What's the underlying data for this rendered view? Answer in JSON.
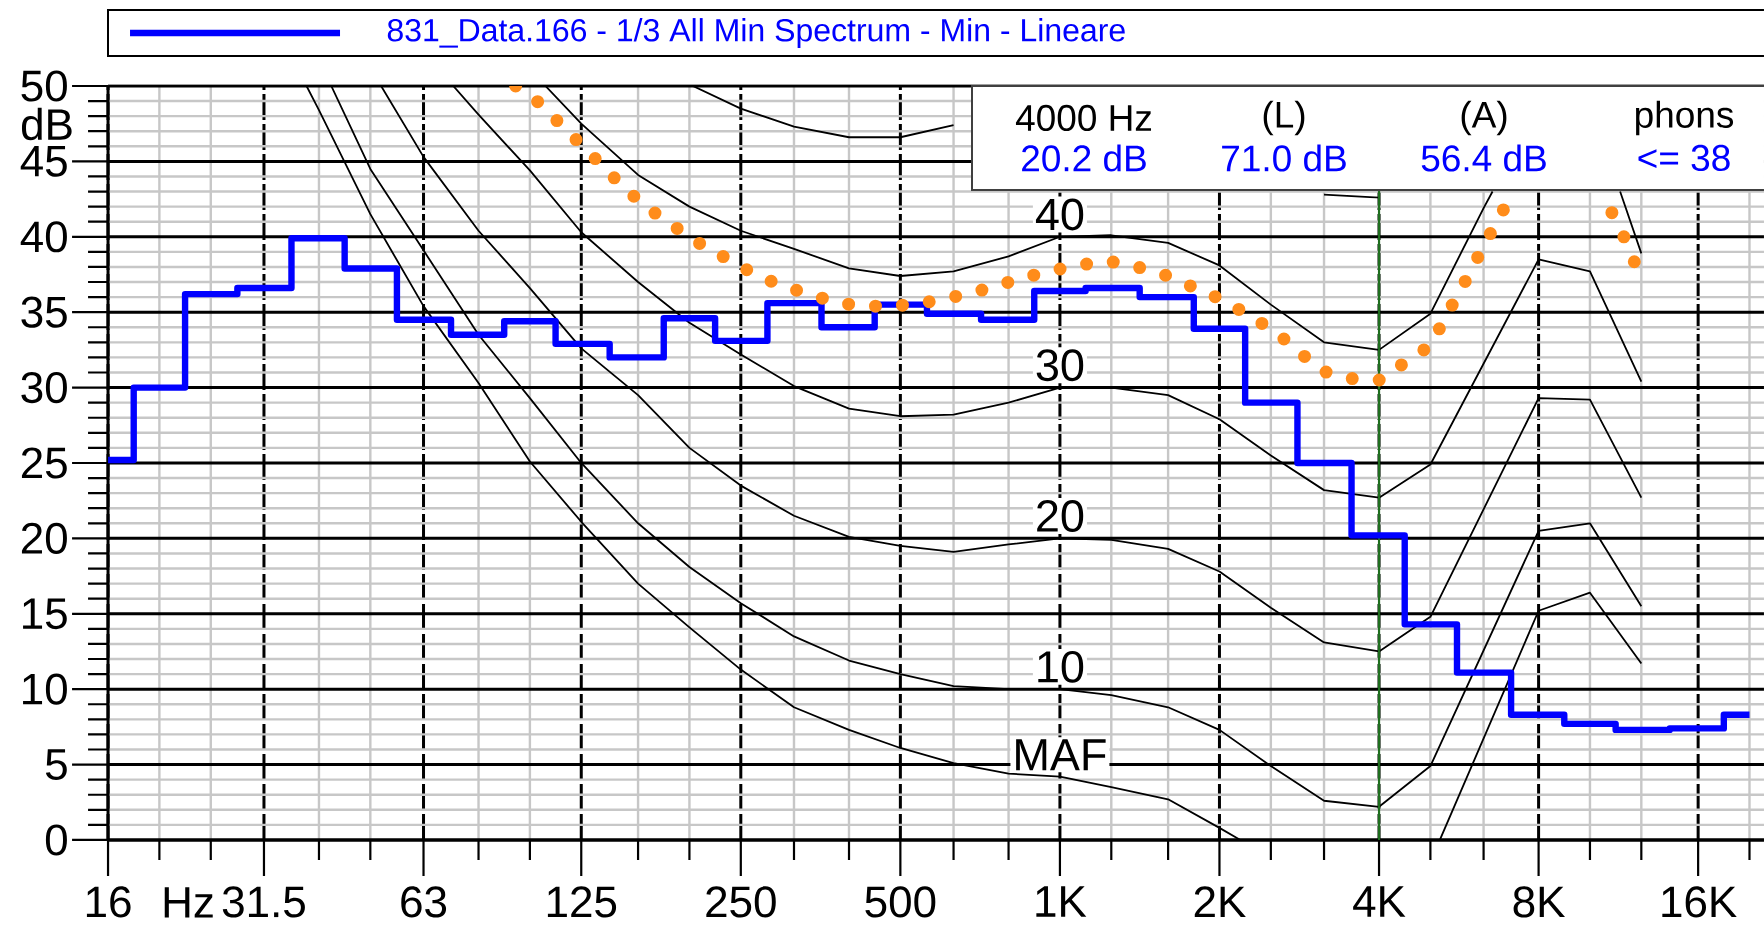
{
  "chart_data": {
    "type": "step",
    "xlabel": "Hz",
    "ylabel": "dB",
    "annotations": [
      "4000 Hz",
      "20.2 dB",
      "(L)",
      "71.0 dB",
      "(A)",
      "56.4 dB",
      "phons",
      "<= 38"
    ],
    "log": "x",
    "xlim": [
      16,
      21300
    ],
    "ylim": [
      0,
      50
    ],
    "xticks": [
      16,
      {
        "value": 20,
        "label": null
      },
      {
        "value": 25,
        "label": null
      },
      31.5,
      {
        "value": 40,
        "label": null
      },
      {
        "value": 50,
        "label": null
      },
      63,
      {
        "value": 80,
        "label": null
      },
      {
        "value": 100,
        "label": null
      },
      125,
      {
        "value": 160,
        "label": null
      },
      {
        "value": 200,
        "label": null
      },
      250,
      {
        "value": 315,
        "label": null
      },
      {
        "value": 400,
        "label": null
      },
      500,
      {
        "value": 630,
        "label": null
      },
      {
        "value": 800,
        "label": null
      },
      {
        "value": 1000,
        "label": "1K"
      },
      {
        "value": 1250,
        "label": null
      },
      {
        "value": 1600,
        "label": null
      },
      {
        "value": 2000,
        "label": "2K"
      },
      {
        "value": 2500,
        "label": null
      },
      {
        "value": 3150,
        "label": null
      },
      {
        "value": 4000,
        "label": "4K"
      },
      {
        "value": 5000,
        "label": null
      },
      {
        "value": 6300,
        "label": null
      },
      {
        "value": 8000,
        "label": "8K"
      },
      {
        "value": 10000,
        "label": null
      },
      {
        "value": 12500,
        "label": null
      },
      {
        "value": 16000,
        "label": "16K"
      },
      {
        "value": 20000,
        "label": null
      }
    ],
    "yticks": [
      0,
      {
        "value": 1,
        "label": null
      },
      {
        "value": 2,
        "label": null
      },
      {
        "value": 3,
        "label": null
      },
      {
        "value": 4,
        "label": null
      },
      5,
      {
        "value": 6,
        "label": null
      },
      {
        "value": 7,
        "label": null
      },
      {
        "value": 8,
        "label": null
      },
      {
        "value": 9,
        "label": null
      },
      10,
      {
        "value": 11,
        "label": null
      },
      {
        "value": 12,
        "label": null
      },
      {
        "value": 13,
        "label": null
      },
      {
        "value": 14,
        "label": null
      },
      15,
      {
        "value": 16,
        "label": null
      },
      {
        "value": 17,
        "label": null
      },
      {
        "value": 18,
        "label": null
      },
      {
        "value": 19,
        "label": null
      },
      20,
      {
        "value": 21,
        "label": null
      },
      {
        "value": 22,
        "label": null
      },
      {
        "value": 23,
        "label": null
      },
      {
        "value": 24,
        "label": null
      },
      25,
      {
        "value": 26,
        "label": null
      },
      {
        "value": 27,
        "label": null
      },
      {
        "value": 28,
        "label": null
      },
      {
        "value": 29,
        "label": null
      },
      30,
      {
        "value": 31,
        "label": null
      },
      {
        "value": 32,
        "label": null
      },
      {
        "value": 33,
        "label": null
      },
      {
        "value": 34,
        "label": null
      },
      35,
      {
        "value": 36,
        "label": null
      },
      {
        "value": 37,
        "label": null
      },
      {
        "value": 38,
        "label": null
      },
      {
        "value": 39,
        "label": null
      },
      40,
      {
        "value": 41,
        "label": null
      },
      {
        "value": 42,
        "label": null
      },
      {
        "value": 43,
        "label": null
      },
      {
        "value": 44,
        "label": null
      },
      45,
      {
        "value": 46,
        "label": null
      },
      {
        "value": 47,
        "label": null
      },
      {
        "value": 48,
        "label": null
      },
      {
        "value": 49,
        "label": null
      },
      50
    ],
    "grid": true,
    "legend": "top",
    "ref_lines": [
      {
        "axis": "x",
        "value": 4000,
        "color": "#1e6e1e"
      }
    ],
    "series": [
      {
        "name": "831_Data.166 - 1/3 All Min Spectrum - Min - Lineare",
        "type": "step",
        "color": "#0000ff",
        "x": [
          16,
          20,
          25,
          31.5,
          40,
          50,
          63,
          80,
          100,
          125,
          160,
          200,
          250,
          315,
          400,
          500,
          630,
          800,
          1000,
          1250,
          1600,
          2000,
          2500,
          3150,
          4000,
          5000,
          6300,
          8000,
          10000,
          12500,
          16000,
          20000
        ],
        "values": [
          25.2,
          30.0,
          36.2,
          36.6,
          39.9,
          37.9,
          34.5,
          33.5,
          34.4,
          32.9,
          32.0,
          34.6,
          33.1,
          35.6,
          34.0,
          35.5,
          34.9,
          34.5,
          36.4,
          36.6,
          36.0,
          33.9,
          29.0,
          25.0,
          20.2,
          14.3,
          11.1,
          8.3,
          7.7,
          7.3,
          7.4,
          8.3
        ]
      },
      {
        "type": "line",
        "color": "#ff8c1a",
        "line_style": "dotted",
        "x": [
          94,
          104,
          114,
          125,
          138,
          151,
          167,
          187,
          208,
          234,
          263,
          296,
          336,
          383,
          433,
          489,
          569,
          648,
          738,
          836,
          950,
          1080,
          1230,
          1400,
          1600,
          1800,
          2030,
          2270,
          2550,
          2820,
          3120,
          3540,
          4020,
          4490,
          5010,
          5340,
          5690,
          6050,
          6440,
          6870,
          null,
          11000,
          11700,
          12300
        ],
        "values": [
          50.0,
          48.9,
          47.5,
          46.1,
          44.6,
          43.2,
          41.9,
          40.7,
          39.6,
          38.6,
          37.6,
          36.8,
          36.2,
          35.6,
          35.4,
          35.4,
          35.7,
          36.1,
          36.6,
          37.2,
          37.7,
          38.1,
          38.4,
          38.0,
          37.4,
          36.6,
          35.8,
          34.8,
          33.7,
          32.4,
          31.1,
          30.6,
          30.5,
          31.7,
          32.8,
          34.7,
          36.4,
          38.2,
          40.0,
          41.8,
          null,
          41.6,
          39.7,
          37.8
        ]
      },
      {
        "name": "MAF",
        "type": "line",
        "color": "#000000",
        "x": [
          37.9,
          40,
          50,
          63,
          80,
          100,
          125,
          160,
          200,
          250,
          315,
          400,
          500,
          630,
          800,
          1000,
          1250,
          1600,
          2000,
          2190,
          null,
          5210,
          8000,
          10000,
          12500
        ],
        "values": [
          50,
          48.4,
          41.5,
          35.4,
          30.3,
          25.1,
          21.1,
          17.0,
          14.1,
          11.3,
          8.8,
          7.3,
          6.1,
          5.1,
          4.4,
          4.2,
          3.5,
          2.7,
          0.8,
          0,
          null,
          0,
          15.2,
          16.4,
          11.7
        ]
      },
      {
        "name": "10",
        "type": "line",
        "color": "#000000",
        "x": [
          42.2,
          50,
          63,
          80,
          100,
          125,
          160,
          200,
          250,
          315,
          400,
          500,
          630,
          800,
          1000,
          1250,
          1600,
          2000,
          2500,
          3150,
          4000,
          5000,
          8000,
          10000,
          12500
        ],
        "values": [
          50,
          44.5,
          39.1,
          33.5,
          29.3,
          25.0,
          21.0,
          18.1,
          15.7,
          13.5,
          11.9,
          11.0,
          10.2,
          10.0,
          10.0,
          9.6,
          8.8,
          7.3,
          4.9,
          2.6,
          2.2,
          4.9,
          20.5,
          21.0,
          15.5
        ]
      },
      {
        "name": "20",
        "type": "line",
        "color": "#000000",
        "x": [
          52.4,
          63,
          80,
          100,
          125,
          160,
          200,
          250,
          315,
          400,
          500,
          630,
          800,
          1000,
          1250,
          1600,
          2000,
          2500,
          3150,
          4000,
          5000,
          8000,
          10000,
          12500
        ],
        "values": [
          50,
          45.3,
          40.4,
          36.6,
          32.6,
          29.5,
          26.0,
          23.5,
          21.5,
          20.1,
          19.5,
          19.1,
          19.6,
          20.0,
          19.9,
          19.3,
          17.8,
          15.4,
          13.1,
          12.5,
          14.8,
          29.3,
          29.2,
          22.7
        ]
      },
      {
        "name": "30",
        "type": "line",
        "color": "#000000",
        "x": [
          71.7,
          80,
          100,
          125,
          160,
          200,
          250,
          315,
          400,
          500,
          630,
          800,
          1000,
          1250,
          1600,
          2000,
          2500,
          3150,
          4000,
          5000,
          8000,
          10000,
          12500
        ],
        "values": [
          50,
          48.1,
          44.4,
          40.3,
          37.0,
          34.3,
          32.2,
          30.1,
          28.6,
          28.1,
          28.2,
          29.0,
          30.0,
          30.0,
          29.5,
          27.9,
          25.5,
          23.2,
          22.7,
          24.9,
          38.5,
          37.7,
          30.4
        ]
      },
      {
        "name": "40",
        "type": "line",
        "color": "#000000",
        "x": [
          107,
          125,
          160,
          200,
          250,
          315,
          400,
          500,
          630,
          800,
          1000,
          1250,
          1600,
          2000,
          2500,
          3150,
          4000,
          5000,
          6300,
          6550,
          null,
          11400,
          12500
        ],
        "values": [
          50,
          47.5,
          44.1,
          42.0,
          40.4,
          39.2,
          37.9,
          37.4,
          37.7,
          38.7,
          40.0,
          40.1,
          39.6,
          38.1,
          35.5,
          33.0,
          32.5,
          34.9,
          41.9,
          43.0,
          null,
          43.0,
          38.9
        ]
      },
      {
        "type": "line",
        "color": "#000000",
        "x": [
          203,
          250,
          315,
          400,
          500,
          630,
          null,
          3150,
          4000
        ],
        "values": [
          50,
          48.5,
          47.3,
          46.6,
          46.6,
          47.4,
          null,
          42.8,
          42.6
        ]
      }
    ]
  }
}
